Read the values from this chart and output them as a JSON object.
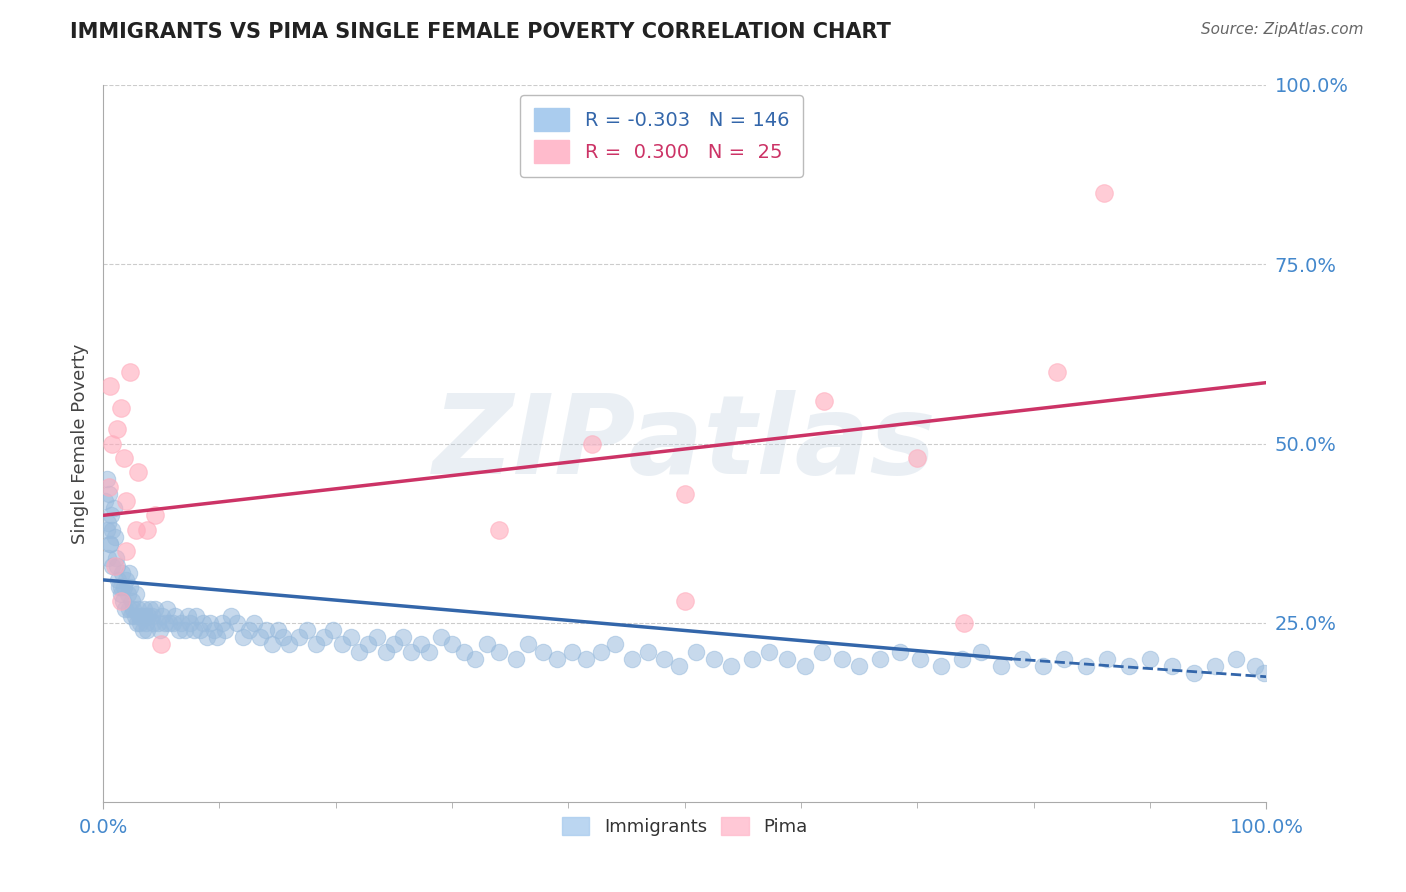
{
  "title": "IMMIGRANTS VS PIMA SINGLE FEMALE POVERTY CORRELATION CHART",
  "source_text": "Source: ZipAtlas.com",
  "ylabel": "Single Female Poverty",
  "xlim": [
    0,
    1
  ],
  "ylim": [
    0,
    1
  ],
  "ytick_labels_right": [
    "25.0%",
    "50.0%",
    "75.0%",
    "100.0%"
  ],
  "ytick_vals_right": [
    0.25,
    0.5,
    0.75,
    1.0
  ],
  "grid_color": "#cccccc",
  "background_color": "#ffffff",
  "legend_R_blue": "-0.303",
  "legend_N_blue": "146",
  "legend_R_pink": "0.300",
  "legend_N_pink": "25",
  "blue_color": "#99bbdd",
  "pink_color": "#ffaabb",
  "blue_line_color": "#3366aa",
  "pink_line_color": "#cc3366",
  "watermark_color": "#bbccdd",
  "watermark_alpha": 0.3,
  "blue_trendline": [
    0.0,
    0.78,
    0.31,
    0.2
  ],
  "blue_dashed": [
    0.78,
    1.0,
    0.2,
    0.175
  ],
  "pink_trendline": [
    0.0,
    1.0,
    0.4,
    0.585
  ],
  "legend_border_color": "#bbbbbb",
  "immigrants_x": [
    0.002,
    0.003,
    0.004,
    0.005,
    0.006,
    0.007,
    0.008,
    0.009,
    0.01,
    0.011,
    0.012,
    0.013,
    0.014,
    0.015,
    0.016,
    0.017,
    0.018,
    0.019,
    0.02,
    0.021,
    0.022,
    0.023,
    0.024,
    0.025,
    0.026,
    0.027,
    0.028,
    0.029,
    0.03,
    0.031,
    0.032,
    0.033,
    0.034,
    0.035,
    0.036,
    0.037,
    0.038,
    0.039,
    0.04,
    0.042,
    0.043,
    0.045,
    0.047,
    0.049,
    0.051,
    0.053,
    0.055,
    0.057,
    0.06,
    0.062,
    0.065,
    0.067,
    0.07,
    0.073,
    0.075,
    0.078,
    0.08,
    0.083,
    0.086,
    0.089,
    0.092,
    0.095,
    0.098,
    0.102,
    0.105,
    0.11,
    0.115,
    0.12,
    0.125,
    0.13,
    0.135,
    0.14,
    0.145,
    0.15,
    0.155,
    0.16,
    0.168,
    0.175,
    0.183,
    0.19,
    0.198,
    0.205,
    0.213,
    0.22,
    0.228,
    0.235,
    0.243,
    0.25,
    0.258,
    0.265,
    0.273,
    0.28,
    0.29,
    0.3,
    0.31,
    0.32,
    0.33,
    0.34,
    0.355,
    0.365,
    0.378,
    0.39,
    0.403,
    0.415,
    0.428,
    0.44,
    0.455,
    0.468,
    0.482,
    0.495,
    0.51,
    0.525,
    0.54,
    0.558,
    0.572,
    0.588,
    0.603,
    0.618,
    0.635,
    0.65,
    0.668,
    0.685,
    0.702,
    0.72,
    0.738,
    0.755,
    0.772,
    0.79,
    0.808,
    0.826,
    0.845,
    0.863,
    0.882,
    0.9,
    0.919,
    0.938,
    0.956,
    0.974,
    0.99,
    0.998,
    0.003,
    0.004,
    0.006,
    0.008,
    0.015,
    0.022
  ],
  "immigrants_y": [
    0.42,
    0.45,
    0.39,
    0.43,
    0.36,
    0.4,
    0.38,
    0.41,
    0.37,
    0.34,
    0.33,
    0.31,
    0.3,
    0.29,
    0.32,
    0.28,
    0.3,
    0.27,
    0.31,
    0.29,
    0.27,
    0.3,
    0.26,
    0.28,
    0.27,
    0.26,
    0.29,
    0.25,
    0.27,
    0.26,
    0.25,
    0.26,
    0.24,
    0.27,
    0.26,
    0.25,
    0.24,
    0.26,
    0.27,
    0.26,
    0.25,
    0.27,
    0.25,
    0.24,
    0.26,
    0.25,
    0.27,
    0.25,
    0.25,
    0.26,
    0.24,
    0.25,
    0.24,
    0.26,
    0.25,
    0.24,
    0.26,
    0.24,
    0.25,
    0.23,
    0.25,
    0.24,
    0.23,
    0.25,
    0.24,
    0.26,
    0.25,
    0.23,
    0.24,
    0.25,
    0.23,
    0.24,
    0.22,
    0.24,
    0.23,
    0.22,
    0.23,
    0.24,
    0.22,
    0.23,
    0.24,
    0.22,
    0.23,
    0.21,
    0.22,
    0.23,
    0.21,
    0.22,
    0.23,
    0.21,
    0.22,
    0.21,
    0.23,
    0.22,
    0.21,
    0.2,
    0.22,
    0.21,
    0.2,
    0.22,
    0.21,
    0.2,
    0.21,
    0.2,
    0.21,
    0.22,
    0.2,
    0.21,
    0.2,
    0.19,
    0.21,
    0.2,
    0.19,
    0.2,
    0.21,
    0.2,
    0.19,
    0.21,
    0.2,
    0.19,
    0.2,
    0.21,
    0.2,
    0.19,
    0.2,
    0.21,
    0.19,
    0.2,
    0.19,
    0.2,
    0.19,
    0.2,
    0.19,
    0.2,
    0.19,
    0.18,
    0.19,
    0.2,
    0.19,
    0.18,
    0.38,
    0.34,
    0.36,
    0.33,
    0.3,
    0.32
  ],
  "pima_x": [
    0.006,
    0.012,
    0.018,
    0.023,
    0.028,
    0.005,
    0.008,
    0.015,
    0.02,
    0.03,
    0.038,
    0.045,
    0.02,
    0.01,
    0.015,
    0.05,
    0.34,
    0.42,
    0.5,
    0.62,
    0.7,
    0.82,
    0.5,
    0.86,
    0.74
  ],
  "pima_y": [
    0.58,
    0.52,
    0.48,
    0.6,
    0.38,
    0.44,
    0.5,
    0.55,
    0.42,
    0.46,
    0.38,
    0.4,
    0.35,
    0.33,
    0.28,
    0.22,
    0.38,
    0.5,
    0.43,
    0.56,
    0.48,
    0.6,
    0.28,
    0.85,
    0.25
  ]
}
